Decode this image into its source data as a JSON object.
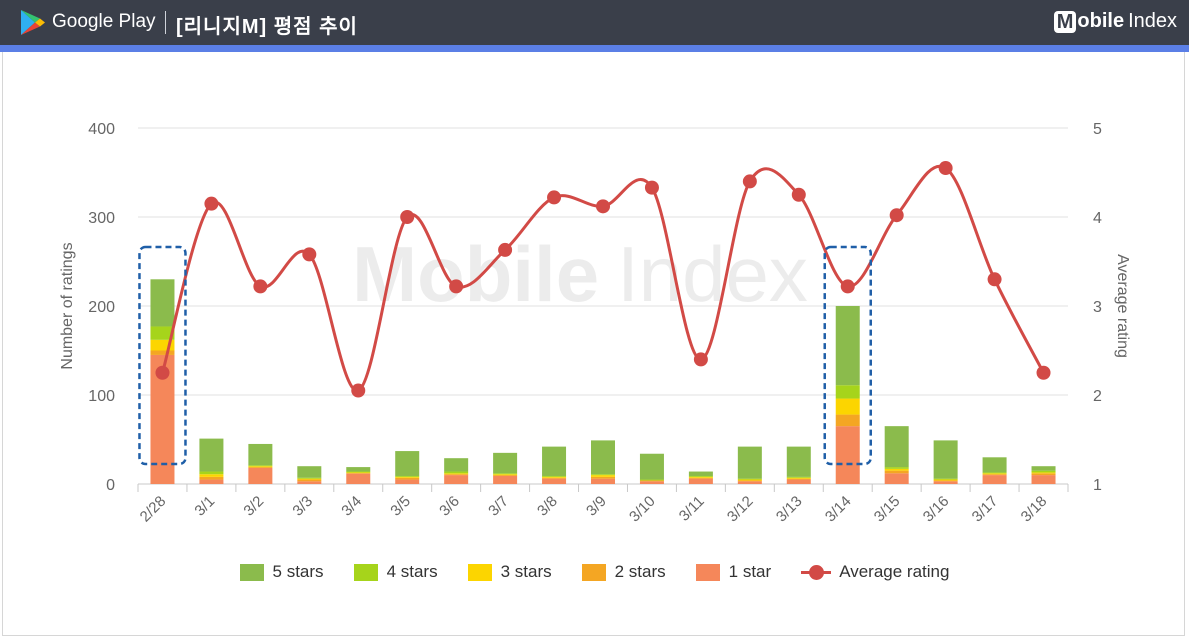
{
  "header": {
    "store_name": "Google Play",
    "title": "[리니지M] 평점 추이",
    "brand_bold": "Mobile",
    "brand_light": "Index",
    "bg_color": "#3a3f4a",
    "accent_color": "#5b7fe6"
  },
  "watermark": "Mobile Index",
  "chart_data": {
    "type": "bar",
    "stacked": true,
    "categories": [
      "2/28",
      "3/1",
      "3/2",
      "3/3",
      "3/4",
      "3/5",
      "3/6",
      "3/7",
      "3/8",
      "3/9",
      "3/10",
      "3/11",
      "3/12",
      "3/13",
      "3/14",
      "3/15",
      "3/16",
      "3/17",
      "3/18"
    ],
    "series": [
      {
        "name": "1 star",
        "color": "#f5875a",
        "values": [
          145,
          5,
          18,
          3,
          12,
          5,
          10,
          9,
          6,
          6,
          3,
          6,
          3,
          5,
          65,
          12,
          3,
          10,
          10
        ]
      },
      {
        "name": "2 stars",
        "color": "#f4a623",
        "values": [
          5,
          3,
          1,
          2,
          0,
          2,
          1,
          1,
          1,
          2,
          1,
          1,
          1,
          1,
          13,
          3,
          1,
          1,
          2
        ]
      },
      {
        "name": "3 stars",
        "color": "#fcd500",
        "values": [
          12,
          3,
          1,
          1,
          1,
          1,
          1,
          1,
          1,
          2,
          0,
          1,
          1,
          1,
          18,
          2,
          1,
          1,
          1
        ]
      },
      {
        "name": "4 stars",
        "color": "#a6d41b",
        "values": [
          15,
          3,
          1,
          1,
          1,
          1,
          2,
          1,
          1,
          1,
          1,
          1,
          1,
          1,
          15,
          2,
          1,
          1,
          2
        ]
      },
      {
        "name": "5 stars",
        "color": "#8bbb4c",
        "values": [
          53,
          37,
          24,
          13,
          5,
          28,
          15,
          23,
          33,
          38,
          29,
          5,
          36,
          34,
          89,
          46,
          43,
          17,
          5
        ]
      }
    ],
    "line_series": {
      "name": "Average rating",
      "color": "#d24a46",
      "values": [
        2.25,
        4.15,
        3.22,
        3.58,
        2.05,
        4.0,
        3.22,
        3.63,
        4.22,
        4.12,
        4.33,
        2.4,
        4.4,
        4.25,
        3.22,
        4.02,
        4.55,
        3.3,
        2.25
      ]
    },
    "highlighted_categories": [
      "2/28",
      "3/14"
    ],
    "y_left": {
      "label": "Number of ratings",
      "min": 0,
      "max": 400,
      "ticks": [
        "0",
        "100",
        "200",
        "300",
        "400"
      ]
    },
    "y_right": {
      "label": "Average rating",
      "min": 1,
      "max": 5,
      "ticks": [
        "1",
        "2",
        "3",
        "4",
        "5"
      ]
    },
    "grid": true,
    "legend_position": "bottom",
    "legend_order": [
      "5 stars",
      "4 stars",
      "3 stars",
      "2 stars",
      "1 star",
      "Average rating"
    ]
  }
}
